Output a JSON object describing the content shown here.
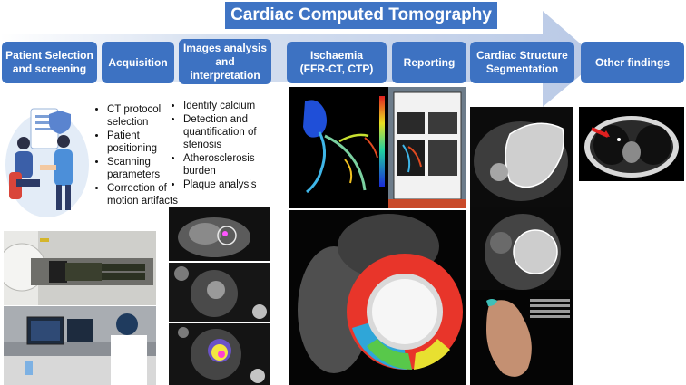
{
  "title": "Cardiac Computed Tomography",
  "stages": [
    {
      "lines": [
        "Patient Selection",
        "and screening"
      ]
    },
    {
      "lines": [
        "Acquisition"
      ]
    },
    {
      "lines": [
        "Images analysis",
        "and",
        "interpretation"
      ]
    },
    {
      "lines": [
        "Ischaemia",
        "(FFR-CT, CTP)"
      ]
    },
    {
      "lines": [
        "Reporting"
      ]
    },
    {
      "lines": [
        "Cardiac Structure",
        "Segmentation"
      ]
    },
    {
      "lines": [
        "Other findings"
      ]
    }
  ],
  "acquisition_items": [
    "CT protocol selection",
    "Patient positioning",
    "Scanning parameters",
    "Correction of motion artifacts"
  ],
  "analysis_items": [
    "Identify calcium",
    "Detection and quantification of stenosis",
    "Atherosclerosis burden",
    "Plaque analysis"
  ],
  "colors": {
    "stage_blue": "#3d72c2",
    "arrow_fill": "#d3ddef",
    "myocardium_red": "#e8352a"
  }
}
